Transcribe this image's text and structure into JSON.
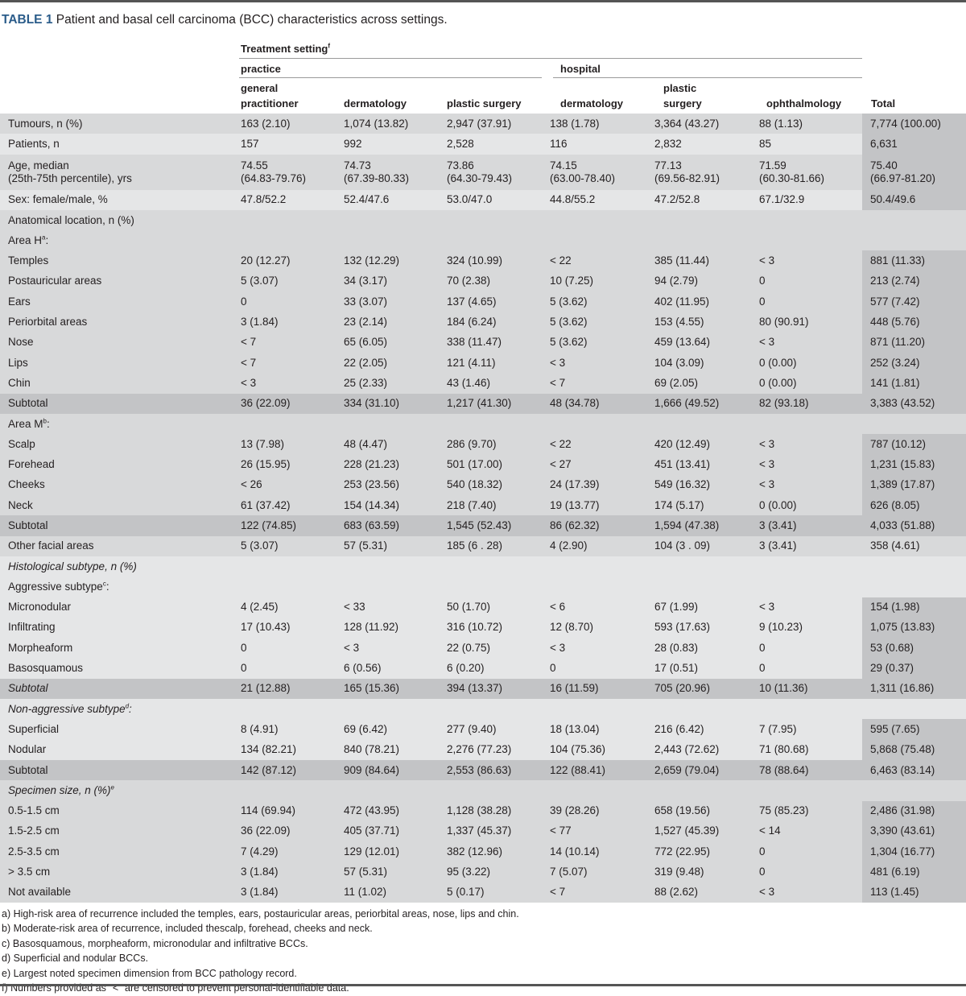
{
  "title": {
    "label": "TABLE 1",
    "text": "Patient and basal cell carcinoma (BCC) characteristics across settings."
  },
  "header": {
    "group": "Treatment setting",
    "group_sup": "f",
    "practice": "practice",
    "hospital": "hospital",
    "columns": [
      [
        "general",
        "practitioner"
      ],
      [
        "",
        "dermatology"
      ],
      [
        "",
        "plastic surgery"
      ],
      [
        "",
        "dermatology"
      ],
      [
        "plastic",
        "surgery"
      ],
      [
        "",
        "ophthalmology"
      ],
      [
        "",
        "Total"
      ]
    ]
  },
  "rows": [
    {
      "label": "Tumours, n (%)",
      "type": "data",
      "shade": "D",
      "cells": [
        "163 (2.10)",
        "1,074 (13.82)",
        "2,947 (37.91)",
        "138 (1.78)",
        "3,364 (43.27)",
        "88 (1.13)",
        "7,774 (100.00)"
      ]
    },
    {
      "label": "Patients, n",
      "type": "data",
      "shade": "L",
      "cells": [
        "157",
        "992",
        "2,528",
        "116",
        "2,832",
        "85",
        "6,631"
      ]
    },
    {
      "label": "Age, median",
      "label2": "(25th-75th percentile), yrs",
      "type": "data",
      "shade": "D",
      "cells": [
        "74.55",
        "74.73",
        "73.86",
        "74.15",
        "77.13",
        "71.59",
        "75.40"
      ],
      "cells2": [
        "(64.83-79.76)",
        "(67.39-80.33)",
        "(64.30-79.43)",
        "(63.00-78.40)",
        "(69.56-82.91)",
        "(60.30-81.66)",
        "(66.97-81.20)"
      ]
    },
    {
      "label": "Sex: female/male, %",
      "type": "data",
      "shade": "L",
      "cells": [
        "47.8/52.2",
        "52.4/47.6",
        "53.0/47.0",
        "44.8/55.2",
        "47.2/52.8",
        "67.1/32.9",
        "50.4/49.6"
      ]
    },
    {
      "label": "Anatomical location, n (%)",
      "type": "head",
      "shade": "D"
    },
    {
      "label": "Area H",
      "sup": "a",
      "suffix": ":",
      "type": "head",
      "shade": "D"
    },
    {
      "label": "Temples",
      "type": "data",
      "shade": "D",
      "cells": [
        "20 (12.27)",
        "132 (12.29)",
        "324 (10.99)",
        "< 22",
        "385 (11.44)",
        "< 3",
        "881 (11.33)"
      ]
    },
    {
      "label": "Postauricular areas",
      "type": "data",
      "shade": "D",
      "cells": [
        "5 (3.07)",
        "34 (3.17)",
        "70 (2.38)",
        "10 (7.25)",
        "94 (2.79)",
        "0",
        "213 (2.74)"
      ]
    },
    {
      "label": "Ears",
      "type": "data",
      "shade": "D",
      "cells": [
        "0",
        "33 (3.07)",
        "137 (4.65)",
        "5 (3.62)",
        "402 (11.95)",
        "0",
        "577 (7.42)"
      ]
    },
    {
      "label": "Periorbital areas",
      "type": "data",
      "shade": "D",
      "cells": [
        "3 (1.84)",
        "23 (2.14)",
        "184 (6.24)",
        "5 (3.62)",
        "153 (4.55)",
        "80 (90.91)",
        "448 (5.76)"
      ]
    },
    {
      "label": "Nose",
      "type": "data",
      "shade": "D",
      "cells": [
        "< 7",
        "65 (6.05)",
        "338 (11.47)",
        "5 (3.62)",
        "459 (13.64)",
        "< 3",
        "871 (11.20)"
      ]
    },
    {
      "label": "Lips",
      "type": "data",
      "shade": "D",
      "cells": [
        "< 7",
        "22 (2.05)",
        "121 (4.11)",
        "< 3",
        "104 (3.09)",
        "0 (0.00)",
        "252 (3.24)"
      ]
    },
    {
      "label": "Chin",
      "type": "data",
      "shade": "D",
      "cells": [
        "< 3",
        "25 (2.33)",
        "43 (1.46)",
        "< 7",
        "69 (2.05)",
        "0 (0.00)",
        "141 (1.81)"
      ]
    },
    {
      "label": "Subtotal",
      "type": "subtotal",
      "shade": "S",
      "cells": [
        "36 (22.09)",
        "334 (31.10)",
        "1,217 (41.30)",
        "48 (34.78)",
        "1,666 (49.52)",
        "82 (93.18)",
        "3,383 (43.52)"
      ]
    },
    {
      "label": "Area M",
      "sup": "b",
      "suffix": ":",
      "type": "head",
      "shade": "D"
    },
    {
      "label": "Scalp",
      "type": "data",
      "shade": "D",
      "cells": [
        "13 (7.98)",
        "48 (4.47)",
        "286 (9.70)",
        "< 22",
        "420 (12.49)",
        "< 3",
        "787 (10.12)"
      ]
    },
    {
      "label": "Forehead",
      "type": "data",
      "shade": "D",
      "cells": [
        "26 (15.95)",
        "228 (21.23)",
        "501 (17.00)",
        "< 27",
        "451 (13.41)",
        "< 3",
        "1,231 (15.83)"
      ]
    },
    {
      "label": "Cheeks",
      "type": "data",
      "shade": "D",
      "cells": [
        "< 26",
        "253 (23.56)",
        "540 (18.32)",
        "24 (17.39)",
        "549 (16.32)",
        "< 3",
        "1,389 (17.87)"
      ]
    },
    {
      "label": "Neck",
      "type": "data",
      "shade": "D",
      "cells": [
        "61 (37.42)",
        "154 (14.34)",
        "218 (7.40)",
        "19 (13.77)",
        "174 (5.17)",
        "0 (0.00)",
        "626 (8.05)"
      ]
    },
    {
      "label": "Subtotal",
      "type": "subtotal",
      "shade": "S",
      "cells": [
        "122 (74.85)",
        "683 (63.59)",
        "1,545 (52.43)",
        "86 (62.32)",
        "1,594 (47.38)",
        "3 (3.41)",
        "4,033 (51.88)"
      ]
    },
    {
      "label": "Other facial areas",
      "type": "plain",
      "shade": "D",
      "cells": [
        "5 (3.07)",
        "57 (5.31)",
        "185 (6 . 28)",
        "4 (2.90)",
        "104 (3 . 09)",
        "3 (3.41)",
        "358 (4.61)"
      ]
    },
    {
      "label": "Histological subtype, n (%)",
      "type": "head",
      "shade": "L",
      "italic": true
    },
    {
      "label": "Aggressive subtype",
      "sup": "c",
      "suffix": ":",
      "type": "head",
      "shade": "L"
    },
    {
      "label": "Micronodular",
      "type": "data",
      "shade": "L",
      "cells": [
        "4 (2.45)",
        "< 33",
        "50 (1.70)",
        "< 6",
        "67 (1.99)",
        "< 3",
        "154 (1.98)"
      ]
    },
    {
      "label": "Infiltrating",
      "type": "data",
      "shade": "L",
      "cells": [
        "17 (10.43)",
        "128 (11.92)",
        "316 (10.72)",
        "12 (8.70)",
        "593 (17.63)",
        "9 (10.23)",
        "1,075 (13.83)"
      ]
    },
    {
      "label": "Morpheaform",
      "type": "data",
      "shade": "L",
      "cells": [
        "0",
        "< 3",
        "22 (0.75)",
        "< 3",
        "28 (0.83)",
        "0",
        "53 (0.68)"
      ]
    },
    {
      "label": "Basosquamous",
      "type": "data",
      "shade": "L",
      "cells": [
        "0",
        "6 (0.56)",
        "6 (0.20)",
        "0",
        "17 (0.51)",
        "0",
        "29 (0.37)"
      ]
    },
    {
      "label": "Subtotal",
      "type": "subtotal",
      "shade": "S",
      "italic": true,
      "cells": [
        "21 (12.88)",
        "165 (15.36)",
        "394 (13.37)",
        "16 (11.59)",
        "705 (20.96)",
        "10 (11.36)",
        "1,311 (16.86)"
      ]
    },
    {
      "label": "Non-aggressive subtype",
      "sup": "d",
      "suffix": ":",
      "type": "head",
      "shade": "L",
      "italic": true
    },
    {
      "label": "Superficial",
      "type": "data",
      "shade": "L",
      "cells": [
        "8 (4.91)",
        "69 (6.42)",
        "277 (9.40)",
        "18 (13.04)",
        "216 (6.42)",
        "7 (7.95)",
        "595 (7.65)"
      ]
    },
    {
      "label": "Nodular",
      "type": "data",
      "shade": "L",
      "cells": [
        "134 (82.21)",
        "840 (78.21)",
        "2,276 (77.23)",
        "104 (75.36)",
        "2,443 (72.62)",
        "71 (80.68)",
        "5,868 (75.48)"
      ]
    },
    {
      "label": "Subtotal",
      "type": "subtotal",
      "shade": "S",
      "cells": [
        "142 (87.12)",
        "909 (84.64)",
        "2,553 (86.63)",
        "122 (88.41)",
        "2,659 (79.04)",
        "78 (88.64)",
        "6,463 (83.14)"
      ]
    },
    {
      "label": "Specimen size, n (%)",
      "sup": "e",
      "type": "head",
      "shade": "D",
      "italic": true
    },
    {
      "label": "0.5-1.5 cm",
      "type": "data",
      "shade": "D",
      "cells": [
        "114 (69.94)",
        "472 (43.95)",
        "1,128 (38.28)",
        "39 (28.26)",
        "658 (19.56)",
        "75 (85.23)",
        "2,486 (31.98)"
      ]
    },
    {
      "label": "1.5-2.5 cm",
      "type": "data",
      "shade": "D",
      "cells": [
        "36 (22.09)",
        "405 (37.71)",
        "1,337 (45.37)",
        "< 77",
        "1,527 (45.39)",
        "< 14",
        "3,390 (43.61)"
      ]
    },
    {
      "label": "2.5-3.5 cm",
      "type": "data",
      "shade": "D",
      "cells": [
        "7 (4.29)",
        "129 (12.01)",
        "382 (12.96)",
        "14 (10.14)",
        "772 (22.95)",
        "0",
        "1,304 (16.77)"
      ]
    },
    {
      "label": "> 3.5 cm",
      "type": "data",
      "shade": "D",
      "cells": [
        "3 (1.84)",
        "57 (5.31)",
        "95 (3.22)",
        "7 (5.07)",
        "319 (9.48)",
        "0",
        "481 (6.19)"
      ]
    },
    {
      "label": "Not available",
      "type": "data",
      "shade": "D",
      "cells": [
        "3 (1.84)",
        "11 (1.02)",
        "5 (0.17)",
        "< 7",
        "88 (2.62)",
        "< 3",
        "113 (1.45)"
      ]
    }
  ],
  "footnotes": [
    "a) High-risk area of recurrence included the temples, ears, postauricular areas, periorbital areas, nose, lips and chin.",
    "b) Moderate-risk area of recurrence, included thescalp, forehead, cheeks and neck.",
    "c) Basosquamous, morpheaform, micronodular and infiltrative BCCs.",
    "d) Superficial and nodular BCCs.",
    "e) Largest noted specimen dimension from BCC pathology record.",
    "f) Numbers provided as \"<\" are censored to prevent personal-identifiable data."
  ]
}
